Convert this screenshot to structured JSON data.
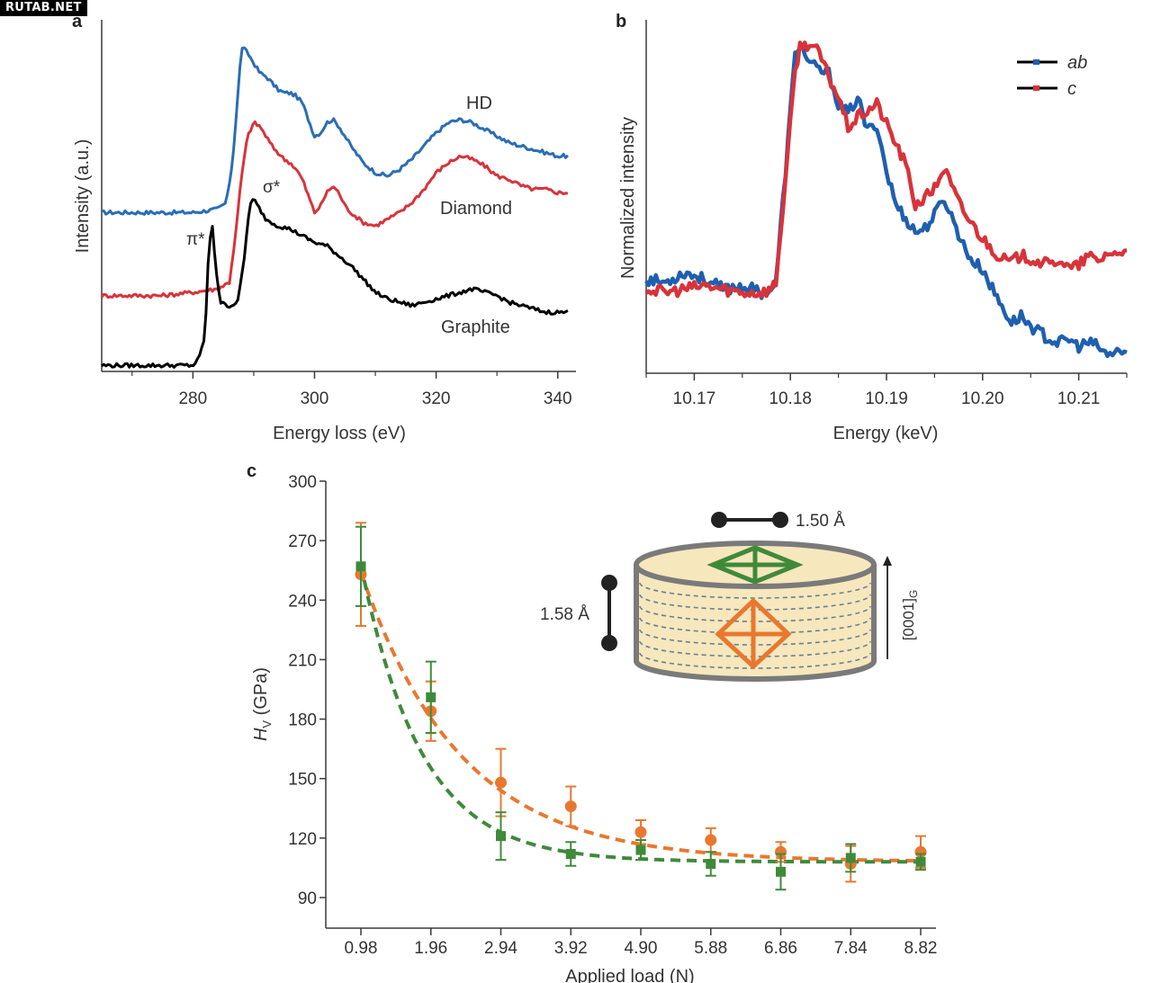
{
  "watermark": "RUTAB.NET",
  "colors": {
    "hd": "#2a6db5",
    "diamond": "#d8333a",
    "graphite": "#000000",
    "ab": "#1f5fb0",
    "c": "#d8333a",
    "orange": "#e8782f",
    "green": "#3f8a3a",
    "axis": "#3a3a3a",
    "cylinder_fill": "#f6e7bd",
    "cylinder_stroke": "#7a7a7a"
  },
  "chart_data": [
    {
      "panel": "a",
      "type": "line",
      "xlabel": "Energy loss (eV)",
      "ylabel": "Intensity (a.u.)",
      "xlim": [
        265,
        343
      ],
      "xticks": [
        280,
        300,
        320,
        340
      ],
      "xticks_minor": [
        270,
        290,
        310,
        330
      ],
      "ylim": [
        0,
        1.05
      ],
      "series": [
        {
          "name": "HD",
          "color": "#2a6db5",
          "x": [
            265,
            270,
            275,
            280,
            284,
            285.5,
            286.5,
            287.3,
            288,
            289,
            290,
            291,
            292,
            293,
            294,
            295,
            296,
            297,
            298,
            299,
            300,
            301,
            302,
            303,
            304,
            305,
            306,
            308,
            310,
            312,
            314,
            316,
            318,
            320,
            322,
            324,
            326,
            328,
            330,
            332,
            334,
            336,
            338,
            340,
            342
          ],
          "y": [
            0.47,
            0.47,
            0.47,
            0.47,
            0.48,
            0.5,
            0.62,
            0.8,
            0.97,
            0.95,
            0.92,
            0.89,
            0.88,
            0.86,
            0.84,
            0.83,
            0.83,
            0.82,
            0.8,
            0.75,
            0.7,
            0.71,
            0.74,
            0.75,
            0.73,
            0.7,
            0.67,
            0.62,
            0.59,
            0.58,
            0.6,
            0.63,
            0.67,
            0.71,
            0.74,
            0.75,
            0.74,
            0.72,
            0.7,
            0.68,
            0.67,
            0.66,
            0.65,
            0.64,
            0.64
          ]
        },
        {
          "name": "Diamond",
          "color": "#d8333a",
          "x": [
            265,
            270,
            275,
            280,
            284,
            286,
            287,
            288,
            289,
            290,
            291,
            292,
            293,
            294,
            295,
            296,
            297,
            298,
            299,
            300,
            301,
            302,
            303,
            304,
            305,
            306,
            308,
            310,
            312,
            314,
            316,
            318,
            320,
            322,
            324,
            326,
            328,
            330,
            332,
            334,
            336,
            338,
            340,
            342
          ],
          "y": [
            0.22,
            0.22,
            0.22,
            0.23,
            0.24,
            0.26,
            0.4,
            0.58,
            0.7,
            0.74,
            0.73,
            0.7,
            0.67,
            0.65,
            0.63,
            0.62,
            0.6,
            0.57,
            0.52,
            0.47,
            0.49,
            0.53,
            0.55,
            0.53,
            0.49,
            0.47,
            0.44,
            0.43,
            0.45,
            0.47,
            0.5,
            0.54,
            0.59,
            0.62,
            0.64,
            0.63,
            0.61,
            0.58,
            0.57,
            0.55,
            0.54,
            0.54,
            0.53,
            0.53
          ]
        },
        {
          "name": "Graphite",
          "color": "#000000",
          "x": [
            265,
            270,
            275,
            280,
            281,
            282,
            282.6,
            283.2,
            283.8,
            284.5,
            285.5,
            286.5,
            287.5,
            288.5,
            289.3,
            290,
            291,
            292,
            294,
            296,
            298,
            300,
            302,
            304,
            306,
            308,
            310,
            312,
            314,
            316,
            318,
            320,
            322,
            324,
            326,
            328,
            330,
            332,
            334,
            336,
            338,
            340,
            342
          ],
          "y": [
            0.01,
            0.01,
            0.01,
            0.01,
            0.03,
            0.1,
            0.36,
            0.43,
            0.3,
            0.2,
            0.19,
            0.19,
            0.21,
            0.34,
            0.49,
            0.51,
            0.48,
            0.45,
            0.43,
            0.42,
            0.4,
            0.38,
            0.37,
            0.34,
            0.31,
            0.27,
            0.23,
            0.21,
            0.2,
            0.19,
            0.2,
            0.21,
            0.22,
            0.23,
            0.24,
            0.23,
            0.22,
            0.2,
            0.19,
            0.18,
            0.17,
            0.17,
            0.17
          ]
        }
      ],
      "labels": [
        "HD",
        "Diamond",
        "Graphite"
      ],
      "annotations": [
        "π*",
        "σ*"
      ]
    },
    {
      "panel": "b",
      "type": "line",
      "xlabel": "Energy (keV)",
      "ylabel": "Normalized intensity",
      "xlim": [
        10.165,
        10.215
      ],
      "xticks": [
        10.17,
        10.18,
        10.19,
        10.2,
        10.21
      ],
      "xtick_labels": [
        "10.17",
        "10.18",
        "10.19",
        "10.20",
        "10.21"
      ],
      "ylim": [
        0,
        1.05
      ],
      "legend": "top-right",
      "series": [
        {
          "name": "ab",
          "color": "#1f5fb0",
          "x": [
            10.165,
            10.167,
            10.169,
            10.171,
            10.173,
            10.175,
            10.177,
            10.178,
            10.1785,
            10.1795,
            10.1805,
            10.181,
            10.182,
            10.183,
            10.184,
            10.185,
            10.186,
            10.187,
            10.188,
            10.189,
            10.19,
            10.191,
            10.192,
            10.193,
            10.194,
            10.195,
            10.196,
            10.197,
            10.198,
            10.199,
            10.2,
            10.201,
            10.202,
            10.203,
            10.204,
            10.205,
            10.206,
            10.207,
            10.208,
            10.209,
            10.21,
            10.211,
            10.212,
            10.213,
            10.214,
            10.215
          ],
          "y": [
            0.28,
            0.27,
            0.3,
            0.28,
            0.25,
            0.26,
            0.24,
            0.25,
            0.27,
            0.6,
            0.95,
            0.98,
            0.92,
            0.9,
            0.89,
            0.8,
            0.77,
            0.82,
            0.72,
            0.74,
            0.6,
            0.5,
            0.46,
            0.42,
            0.43,
            0.47,
            0.52,
            0.45,
            0.38,
            0.33,
            0.31,
            0.25,
            0.2,
            0.15,
            0.17,
            0.14,
            0.12,
            0.1,
            0.09,
            0.1,
            0.08,
            0.09,
            0.08,
            0.05,
            0.07,
            0.05
          ]
        },
        {
          "name": "c",
          "color": "#d8333a",
          "x": [
            10.165,
            10.167,
            10.169,
            10.171,
            10.173,
            10.175,
            10.177,
            10.178,
            10.1785,
            10.1795,
            10.1805,
            10.181,
            10.182,
            10.183,
            10.184,
            10.185,
            10.186,
            10.187,
            10.188,
            10.189,
            10.19,
            10.191,
            10.192,
            10.193,
            10.194,
            10.195,
            10.196,
            10.197,
            10.198,
            10.199,
            10.2,
            10.201,
            10.202,
            10.203,
            10.204,
            10.205,
            10.206,
            10.207,
            10.208,
            10.209,
            10.21,
            10.211,
            10.212,
            10.213,
            10.214,
            10.215
          ],
          "y": [
            0.25,
            0.24,
            0.25,
            0.26,
            0.25,
            0.24,
            0.24,
            0.25,
            0.27,
            0.58,
            0.9,
            0.97,
            0.98,
            0.95,
            0.88,
            0.82,
            0.73,
            0.76,
            0.78,
            0.8,
            0.74,
            0.68,
            0.62,
            0.5,
            0.52,
            0.55,
            0.61,
            0.54,
            0.48,
            0.44,
            0.4,
            0.37,
            0.34,
            0.33,
            0.35,
            0.34,
            0.33,
            0.32,
            0.34,
            0.31,
            0.32,
            0.35,
            0.33,
            0.36,
            0.35,
            0.38
          ]
        }
      ]
    },
    {
      "panel": "c",
      "type": "scatter",
      "xlabel": "Applied load (N)",
      "ylabel": "HV (GPa)",
      "ylabel_main": "H",
      "ylabel_sub": "V",
      "ylabel_rest": " (GPa)",
      "categories": [
        "0.98",
        "1.96",
        "2.94",
        "3.92",
        "4.90",
        "5.88",
        "6.86",
        "7.84",
        "8.82"
      ],
      "x": [
        0.98,
        1.96,
        2.94,
        3.92,
        4.9,
        5.88,
        6.86,
        7.84,
        8.82
      ],
      "xlim": [
        0.5,
        9.0
      ],
      "ylim": [
        80,
        300
      ],
      "yticks": [
        90,
        120,
        150,
        180,
        210,
        240,
        270,
        300
      ],
      "series": [
        {
          "name": "orange",
          "color": "#e8782f",
          "marker": "circle",
          "values": [
            253,
            184,
            148,
            136,
            123,
            119,
            113,
            107,
            113
          ],
          "errors": [
            26,
            15,
            17,
            10,
            6,
            6,
            5,
            9,
            8
          ]
        },
        {
          "name": "green",
          "color": "#3f8a3a",
          "marker": "square",
          "values": [
            257,
            191,
            121,
            112,
            114,
            107,
            103,
            110,
            108
          ],
          "errors": [
            20,
            18,
            12,
            6,
            5,
            6,
            9,
            7,
            4
          ]
        }
      ],
      "fits": [
        {
          "series": "orange",
          "model": "y0 + A*exp(-(x-0.98)/t)",
          "y0": 108,
          "A": 146,
          "t": 1.4
        },
        {
          "series": "green",
          "model": "y0 + A*exp(-(x-0.98)/t)",
          "y0": 108,
          "A": 150,
          "t": 0.85
        }
      ],
      "inset": {
        "bond_top": "1.50 Å",
        "bond_left": "1.58 Å",
        "axis_label_main": "[0001]",
        "axis_label_sub": "G"
      }
    }
  ]
}
